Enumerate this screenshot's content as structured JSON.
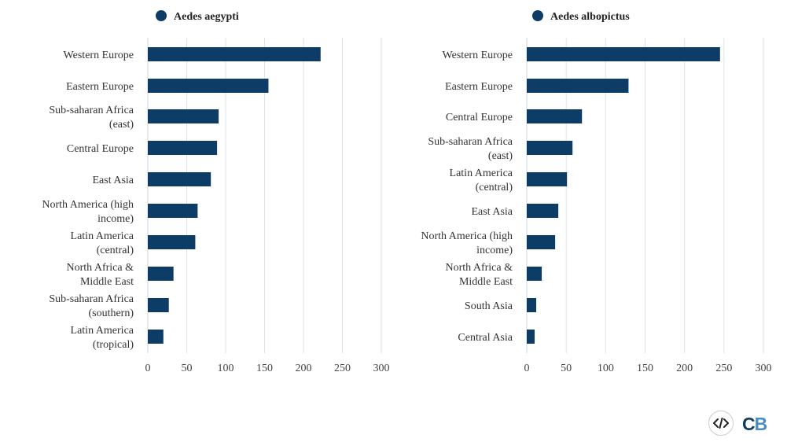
{
  "chart_data": [
    {
      "type": "bar",
      "orientation": "horizontal",
      "series_name": "Aedes aegypti",
      "categories": [
        "Western Europe",
        "Eastern Europe",
        "Sub-saharan Africa (east)",
        "Central Europe",
        "East Asia",
        "North America (high income)",
        "Latin America (central)",
        "North Africa & Middle East",
        "Sub-saharan Africa (southern)",
        "Latin America (tropical)"
      ],
      "values": [
        222,
        155,
        91,
        89,
        81,
        64,
        61,
        33,
        27,
        20
      ],
      "xlim": [
        0,
        300
      ],
      "ticks": [
        0,
        50,
        100,
        150,
        200,
        250,
        300
      ],
      "color": "#0d3c66",
      "grid": true
    },
    {
      "type": "bar",
      "orientation": "horizontal",
      "series_name": "Aedes albopictus",
      "categories": [
        "Western Europe",
        "Eastern Europe",
        "Central Europe",
        "Sub-saharan Africa (east)",
        "Latin America (central)",
        "East Asia",
        "North America (high income)",
        "North Africa & Middle East",
        "South Asia",
        "Central Asia"
      ],
      "values": [
        245,
        129,
        70,
        58,
        51,
        40,
        36,
        19,
        12,
        10
      ],
      "xlim": [
        0,
        300
      ],
      "ticks": [
        0,
        50,
        100,
        150,
        200,
        250,
        300
      ],
      "color": "#0d3c66",
      "grid": true
    }
  ],
  "footer": {
    "embed_icon": "code-embed-icon",
    "logo_c": "C",
    "logo_b": "B"
  },
  "colors": {
    "bar": "#0d3c66",
    "legend_dot": "#0d3c66",
    "logo_dark": "#0f3e64",
    "logo_light": "#4b8bc4"
  }
}
